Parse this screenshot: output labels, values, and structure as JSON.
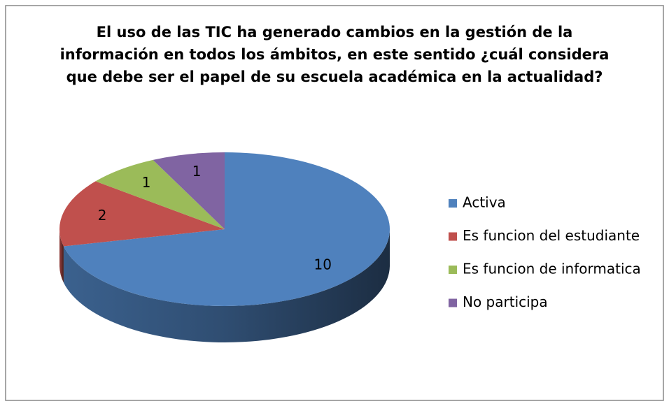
{
  "chart_data": {
    "type": "pie3d",
    "title": "El uso de las TIC ha generado cambios en la gestión de la\ninformación en todos los ámbitos, en este sentido ¿cuál considera\nque debe ser el papel de su escuela académica en la actualidad?",
    "categories": [
      "Activa",
      "Es funcion del estudiante",
      "Es funcion de informatica",
      "No participa"
    ],
    "values": [
      10,
      2,
      1,
      1
    ],
    "colors": [
      "#4f81bd",
      "#c0504d",
      "#9bbb59",
      "#8064a2"
    ],
    "legend": "right"
  }
}
